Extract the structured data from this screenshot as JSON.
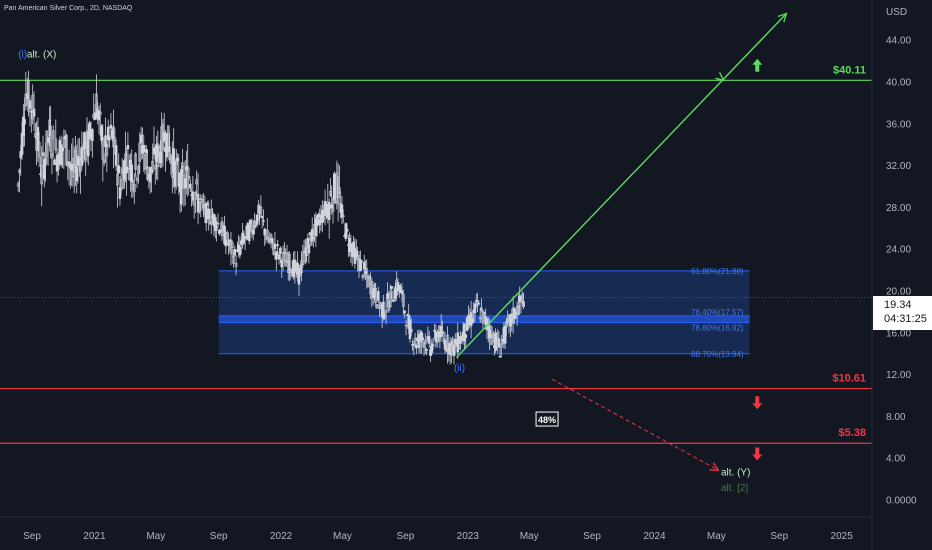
{
  "header": {
    "symbol_title": "Pan American Silver Corp., 2D, NASDAQ",
    "currency": "USD"
  },
  "price_box": {
    "last": "19.34",
    "countdown": "04:31:25"
  },
  "colors": {
    "background": "#131722",
    "axis_text": "#b2b5be",
    "candle": "#d1d4dc",
    "green": "#4caf50",
    "green_line": "#5ddc5d",
    "red": "#f23645",
    "fib_fill": "#1c3a7a",
    "fib_line": "#2962ff",
    "fib_text": "#3d7bff",
    "wave_label": "#3d7bff",
    "alt_label": "#c8e6c9",
    "alt2_label": "#4f6f4f"
  },
  "chart_data": {
    "type": "candlestick",
    "title": "Pan American Silver Corp., 2D, NASDAQ",
    "ylabel": "USD",
    "ylim": [
      -0.6,
      48.5
    ],
    "y_ticks": [
      "0.0000",
      "4.00",
      "8.00",
      "12.00",
      "16.00",
      "20.00",
      "24.00",
      "28.00",
      "32.00",
      "36.00",
      "40.00",
      "44.00"
    ],
    "x_ticks": [
      "Sep",
      "2021",
      "May",
      "Sep",
      "2022",
      "May",
      "Sep",
      "2023",
      "May",
      "Sep",
      "2024",
      "May",
      "Sep",
      "2025"
    ],
    "x_tick_dates": [
      "2020-09-01",
      "2021-01-01",
      "2021-05-01",
      "2021-09-01",
      "2022-01-01",
      "2022-05-01",
      "2022-09-01",
      "2023-01-01",
      "2023-05-01",
      "2023-09-01",
      "2024-01-01",
      "2024-05-01",
      "2024-09-01",
      "2025-01-01"
    ],
    "price_series": [
      [
        "2020-08-05",
        30.0
      ],
      [
        "2020-08-20",
        39.0
      ],
      [
        "2020-09-05",
        37.0
      ],
      [
        "2020-09-20",
        31.0
      ],
      [
        "2020-10-05",
        35.0
      ],
      [
        "2020-10-20",
        33.0
      ],
      [
        "2020-11-05",
        34.0
      ],
      [
        "2020-11-20",
        31.0
      ],
      [
        "2020-12-05",
        33.0
      ],
      [
        "2020-12-20",
        34.0
      ],
      [
        "2021-01-05",
        38.0
      ],
      [
        "2021-01-20",
        33.0
      ],
      [
        "2021-02-05",
        35.0
      ],
      [
        "2021-02-20",
        30.0
      ],
      [
        "2021-03-05",
        33.0
      ],
      [
        "2021-03-20",
        31.0
      ],
      [
        "2021-04-05",
        34.0
      ],
      [
        "2021-04-20",
        31.0
      ],
      [
        "2021-05-05",
        33.0
      ],
      [
        "2021-05-20",
        35.0
      ],
      [
        "2021-06-05",
        32.0
      ],
      [
        "2021-06-20",
        30.0
      ],
      [
        "2021-07-05",
        31.0
      ],
      [
        "2021-07-20",
        29.0
      ],
      [
        "2021-08-05",
        27.5
      ],
      [
        "2021-08-20",
        27.0
      ],
      [
        "2021-09-05",
        26.0
      ],
      [
        "2021-09-20",
        24.5
      ],
      [
        "2021-10-05",
        23.0
      ],
      [
        "2021-10-20",
        25.0
      ],
      [
        "2021-11-05",
        26.0
      ],
      [
        "2021-11-20",
        27.5
      ],
      [
        "2021-12-05",
        25.0
      ],
      [
        "2021-12-20",
        24.0
      ],
      [
        "2022-01-05",
        23.0
      ],
      [
        "2022-01-20",
        22.5
      ],
      [
        "2022-02-05",
        21.5
      ],
      [
        "2022-02-20",
        24.0
      ],
      [
        "2022-03-05",
        25.5
      ],
      [
        "2022-03-20",
        27.0
      ],
      [
        "2022-04-05",
        28.5
      ],
      [
        "2022-04-20",
        30.0
      ],
      [
        "2022-05-05",
        26.0
      ],
      [
        "2022-05-20",
        24.0
      ],
      [
        "2022-06-05",
        22.5
      ],
      [
        "2022-06-20",
        21.0
      ],
      [
        "2022-07-05",
        19.5
      ],
      [
        "2022-07-20",
        18.0
      ],
      [
        "2022-08-05",
        19.5
      ],
      [
        "2022-08-20",
        20.5
      ],
      [
        "2022-09-05",
        17.0
      ],
      [
        "2022-09-20",
        15.0
      ],
      [
        "2022-10-05",
        15.5
      ],
      [
        "2022-10-20",
        14.5
      ],
      [
        "2022-11-05",
        16.0
      ],
      [
        "2022-11-20",
        15.0
      ],
      [
        "2022-12-05",
        14.5
      ],
      [
        "2022-12-20",
        15.5
      ],
      [
        "2023-01-05",
        17.0
      ],
      [
        "2023-01-20",
        18.5
      ],
      [
        "2023-02-05",
        17.0
      ],
      [
        "2023-02-20",
        15.5
      ],
      [
        "2023-03-05",
        14.5
      ],
      [
        "2023-03-20",
        16.5
      ],
      [
        "2023-04-05",
        18.0
      ],
      [
        "2023-04-20",
        19.3
      ]
    ],
    "horizontal_levels": [
      {
        "label": "$40.11",
        "price": 40.11,
        "color": "green"
      },
      {
        "label": "$10.61",
        "price": 10.61,
        "color": "red"
      },
      {
        "label": "$5.38",
        "price": 5.38,
        "color": "red"
      }
    ],
    "fibonacci_zone": {
      "start_date": "2021-09-01",
      "end_date": "2024-07-05",
      "levels": [
        {
          "label": "61.80%(21.88)",
          "price": 21.88
        },
        {
          "label": "76.40%(17.57)",
          "price": 17.57
        },
        {
          "label": "78.60%(16.92)",
          "price": 16.92
        },
        {
          "label": "88.70%(13.94)",
          "price": 13.94
        }
      ]
    },
    "trend_lines": [
      {
        "style": "solid",
        "color": "green",
        "from": [
          "2022-12-10",
          13.6
        ],
        "to": [
          "2024-09-15",
          46.5
        ]
      },
      {
        "style": "dashed",
        "color": "red",
        "from": [
          "2023-06-15",
          11.5
        ],
        "to": [
          "2024-05-05",
          2.8
        ]
      }
    ],
    "wave_labels": [
      {
        "text": "(i)",
        "date": "2020-08-05",
        "price": 42.3,
        "color": "wave_label"
      },
      {
        "text": "alt. (X)",
        "date": "2020-08-22",
        "price": 42.3,
        "color": "alt_label"
      },
      {
        "text": "(ii)",
        "date": "2022-12-05",
        "price": 12.3,
        "color": "wave_label"
      },
      {
        "text": "alt. (Y)",
        "date": "2024-05-10",
        "price": 2.3,
        "color": "alt_label"
      },
      {
        "text": "alt. [2]",
        "date": "2024-05-10",
        "price": 0.8,
        "color": "alt2_label"
      }
    ],
    "annotations": [
      {
        "text": "48%",
        "date": "2023-06-05",
        "price": 7.6,
        "type": "boxed"
      }
    ],
    "arrows": [
      {
        "direction": "up",
        "color": "green",
        "date": "2024-07-20",
        "price": 41.5
      },
      {
        "direction": "down",
        "color": "red",
        "date": "2024-07-20",
        "price": 9.3
      },
      {
        "direction": "down",
        "color": "red",
        "date": "2024-07-20",
        "price": 4.4
      }
    ]
  }
}
